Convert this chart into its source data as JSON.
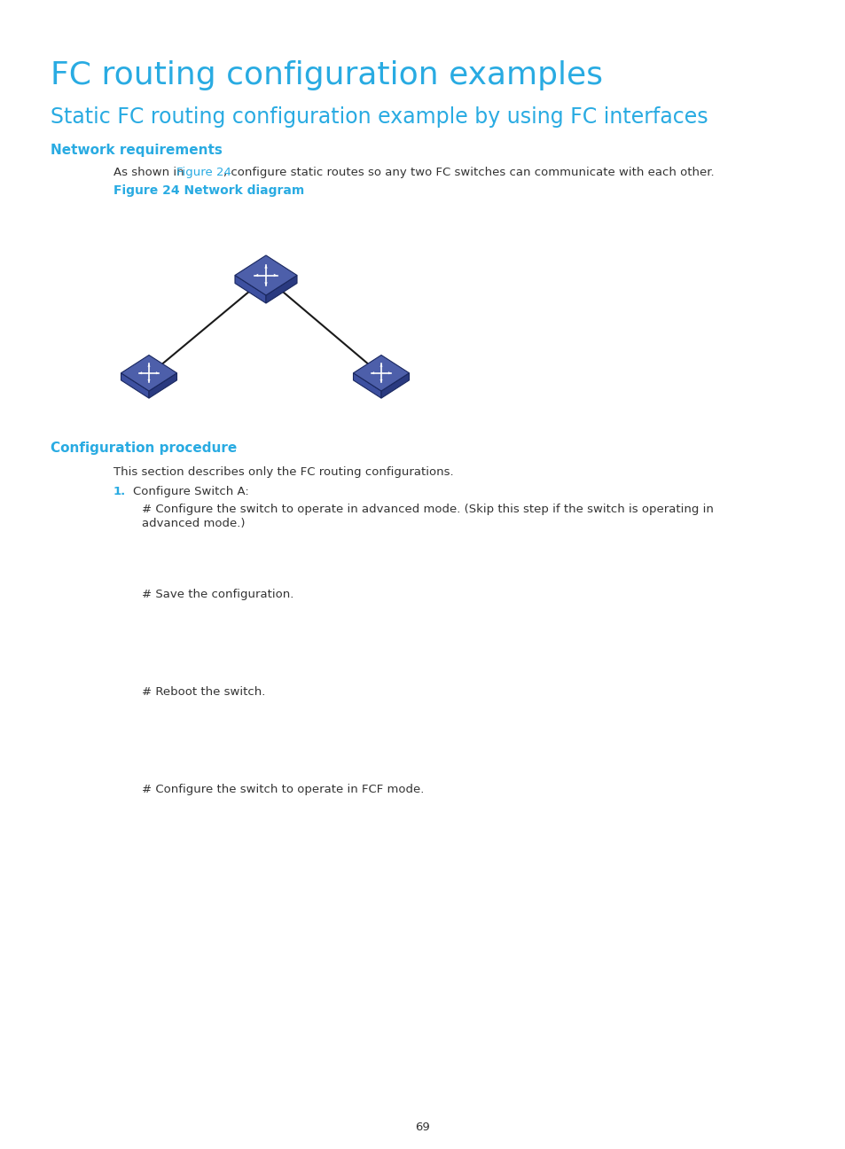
{
  "bg_color": "#ffffff",
  "title1": "FC routing configuration examples",
  "title1_color": "#29abe2",
  "title1_size": 26,
  "title2": "Static FC routing configuration example by using FC interfaces",
  "title2_color": "#29abe2",
  "title2_size": 17,
  "section1_header": "Network requirements",
  "section1_header_color": "#29abe2",
  "section1_header_size": 11,
  "body_text1_pre": "As shown in ",
  "body_text1_link": "Figure 24",
  "body_text1_post": ", configure static routes so any two FC switches can communicate with each other.",
  "link_color": "#29abe2",
  "figure_caption": "Figure 24 Network diagram",
  "figure_caption_color": "#29abe2",
  "figure_caption_size": 10,
  "section2_header": "Configuration procedure",
  "section2_header_color": "#29abe2",
  "section2_header_size": 11,
  "body_text2": "This section describes only the FC routing configurations.",
  "list_num": "1.",
  "list_num_color": "#29abe2",
  "list_text": "Configure Switch A:",
  "config_text1a": "# Configure the switch to operate in advanced mode. (Skip this step if the switch is operating in",
  "config_text1b": "advanced mode.)",
  "config_text2": "# Save the configuration.",
  "config_text3": "# Reboot the switch.",
  "config_text4": "# Configure the switch to operate in FCF mode.",
  "page_number": "69",
  "body_font_size": 9.5,
  "text_color": "#333333",
  "line_color": "#1a1a1a",
  "switch_face_color": "#4d5faa",
  "switch_right_color": "#2a3a80",
  "switch_left_color": "#3d50a0",
  "switch_edge_color": "#1a2860"
}
